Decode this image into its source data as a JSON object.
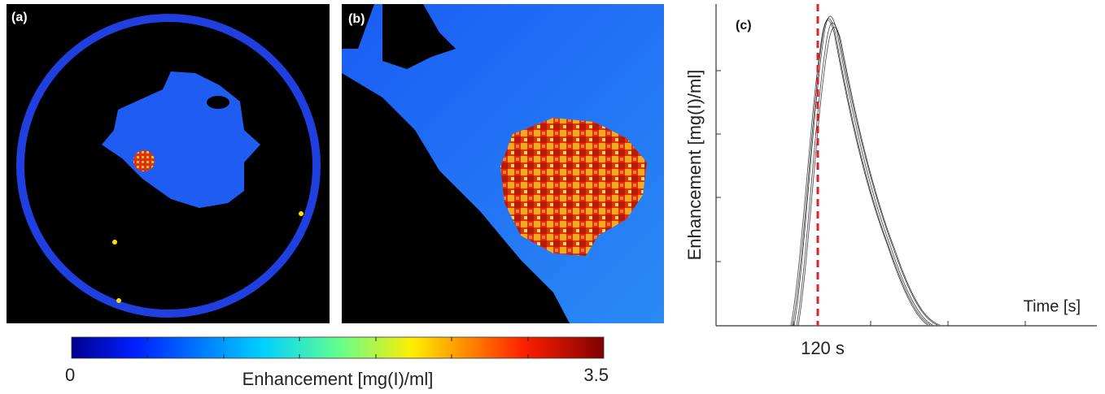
{
  "panels": [
    {
      "label": "(a)"
    },
    {
      "label": "(b)"
    },
    {
      "label": "(c)",
      "y_label": "Enhancement [mg(I)/ml]",
      "x_label": "Time [s]",
      "marker_label": "120 s"
    }
  ],
  "colorbar": {
    "label": "Enhancement [mg(I)/ml]",
    "min": 0,
    "max": 3.5
  }
}
